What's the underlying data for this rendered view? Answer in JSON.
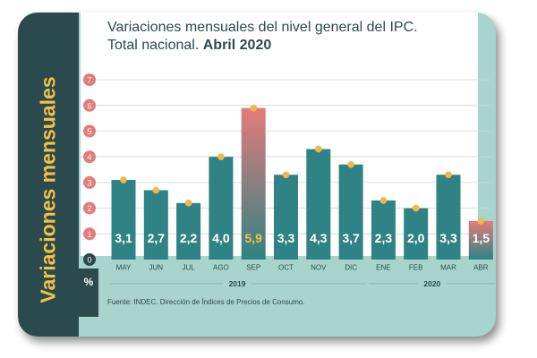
{
  "side_title": "Variaciones mensuales",
  "title": {
    "line1": "Variaciones mensuales del nivel general del IPC.",
    "line2_regular": "Total nacional.",
    "line2_bold": "Abril 2020"
  },
  "unit_label": "%",
  "source": "Fuente: INDEC. Dirección de Índices de Precios de Consumo.",
  "colors": {
    "bar": "#2f8384",
    "highlight_top": "#e57b7b",
    "highlight_bottom": "#2f8384",
    "dot": "#f3b64a",
    "tick_circle": "#e57b7b",
    "month_pill": "#a9d4cd",
    "panel_dark": "#2b4a4d",
    "highlight_label": "#f3c046"
  },
  "chart_data": {
    "type": "bar",
    "categories": [
      "MAY",
      "JUN",
      "JUL",
      "AGO",
      "SEP",
      "OCT",
      "NOV",
      "DIC",
      "ENE",
      "FEB",
      "MAR",
      "ABR"
    ],
    "values": [
      3.1,
      2.7,
      2.2,
      4.0,
      5.9,
      3.3,
      4.3,
      3.7,
      2.3,
      2.0,
      3.3,
      1.5
    ],
    "value_labels": [
      "3,1",
      "2,7",
      "2,2",
      "4,0",
      "5,9",
      "3,3",
      "4,3",
      "3,7",
      "2,3",
      "2,0",
      "3,3",
      "1,5"
    ],
    "highlighted": [
      "SEP",
      "ABR"
    ],
    "year_groups": [
      {
        "label": "2019",
        "from": "MAY",
        "to": "DIC"
      },
      {
        "label": "2020",
        "from": "ENE",
        "to": "ABR"
      }
    ],
    "y_ticks": [
      0,
      1,
      2,
      3,
      4,
      5,
      6,
      7
    ],
    "ylim": [
      0,
      7
    ],
    "grid": true
  }
}
